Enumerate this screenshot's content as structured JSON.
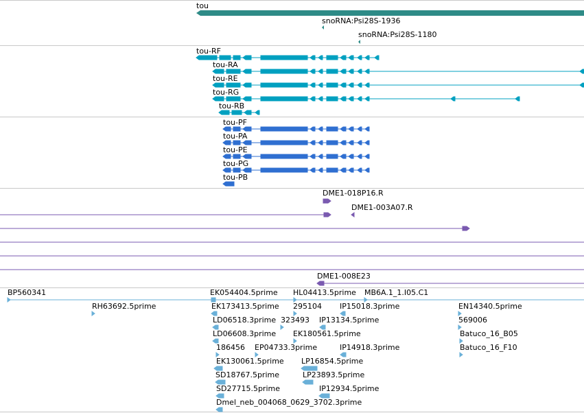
{
  "colors": {
    "gene": "#2e8b87",
    "transcript": "#00a0c0",
    "protein": "#2f6fd1",
    "clone": "#7a5ab0",
    "est": "#6ab0d8",
    "divider": "#c8c8c8"
  },
  "gene_track": {
    "gene_label": "tou",
    "snorna": [
      "snoRNA:Psi28S-1936",
      "snoRNA:Psi28S-1180"
    ]
  },
  "transcript_track": {
    "labels": [
      "tou-RF",
      "tou-RA",
      "tou-RE",
      "tou-RG",
      "tou-RB"
    ]
  },
  "protein_track": {
    "labels": [
      "tou-PF",
      "tou-PA",
      "tou-PE",
      "tou-PG",
      "tou-PB"
    ]
  },
  "clone_track": {
    "labels": [
      "DME1-018P16.R",
      "DME1-003A07.R",
      "DME1-008E23"
    ]
  },
  "est_track": {
    "labels": [
      "BP560341",
      "RH63692.5prime",
      "EK054404.5prime",
      "HL04413.5prime",
      "MB6A.1_1.I05.C1",
      "EK173413.5prime",
      "295104",
      "IP15018.3prime",
      "EN14340.5prime",
      "LD06518.3prime",
      "323493",
      "IP13134.5prime",
      "569006",
      "LD06608.3prime",
      "EK180561.5prime",
      "Batuco_16_B05",
      "186456",
      "EP04733.3prime",
      "IP14918.3prime",
      "Batuco_16_F10",
      "EK130061.5prime",
      "LP16854.5prime",
      "SD18767.5prime",
      "LP23893.5prime",
      "SD27715.5prime",
      "IP12934.5prime",
      "Dmel_neb_004068_0629_3702.3prime"
    ]
  }
}
